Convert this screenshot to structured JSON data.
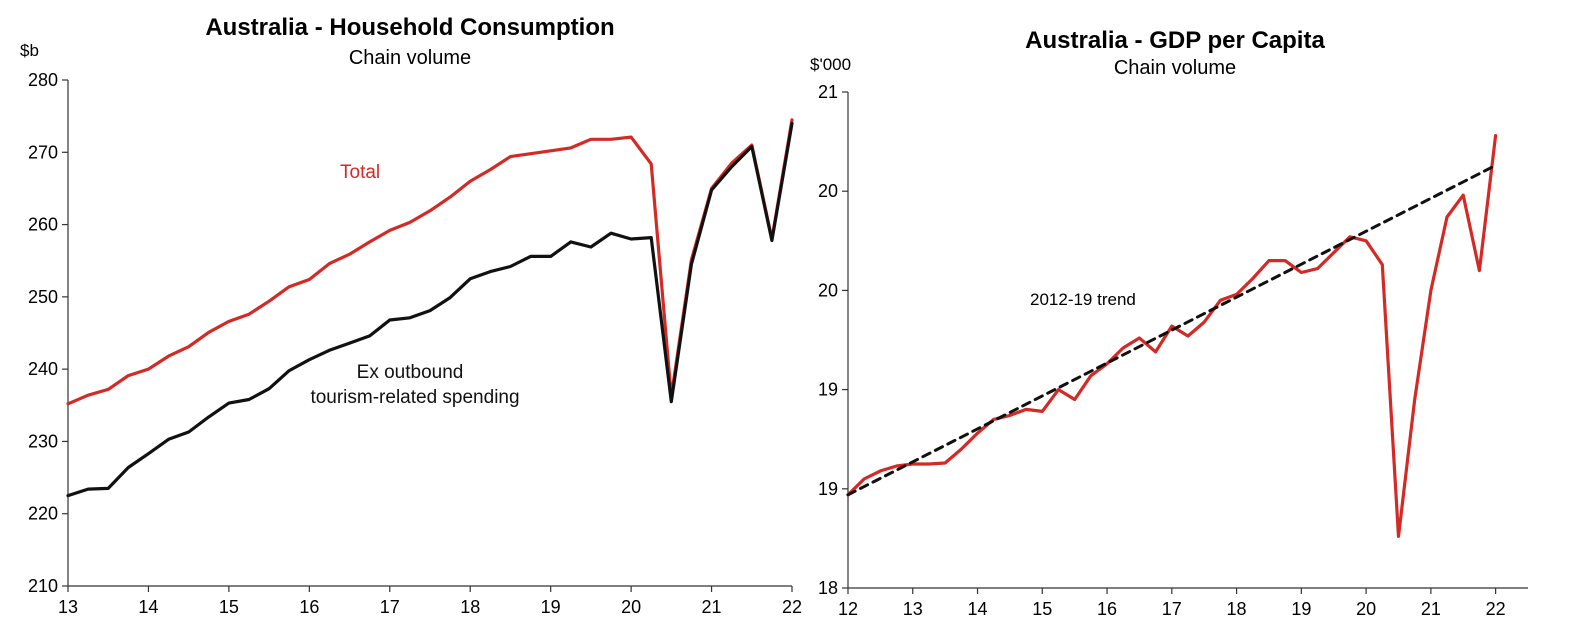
{
  "colors": {
    "total": "#d42a26",
    "ex_outbound": "#111111",
    "gdp": "#d42a26",
    "trend": "#111111"
  },
  "chart_data": [
    {
      "type": "line",
      "title": "Australia - Household Consumption",
      "subtitle": "Chain volume",
      "ylabel": "$b",
      "ylim": [
        210,
        280
      ],
      "yticks": [
        210,
        220,
        230,
        240,
        250,
        260,
        270,
        280
      ],
      "xlim": [
        13,
        22
      ],
      "xticks": [
        13,
        14,
        15,
        16,
        17,
        18,
        19,
        20,
        21,
        22
      ],
      "xtick_labels": [
        "13",
        "14",
        "15",
        "16",
        "17",
        "18",
        "19",
        "20",
        "21",
        "22"
      ],
      "x": [
        13.0,
        13.25,
        13.5,
        13.75,
        14.0,
        14.25,
        14.5,
        14.75,
        15.0,
        15.25,
        15.5,
        15.75,
        16.0,
        16.25,
        16.5,
        16.75,
        17.0,
        17.25,
        17.5,
        17.75,
        18.0,
        18.25,
        18.5,
        18.75,
        19.0,
        19.25,
        19.5,
        19.75,
        20.0,
        20.25,
        20.5,
        20.75,
        21.0,
        21.25,
        21.5,
        21.75,
        22.0
      ],
      "series": [
        {
          "name": "Total",
          "color": "#d42a26",
          "values": [
            235.2,
            236.4,
            237.2,
            239.1,
            240.0,
            241.8,
            243.1,
            245.1,
            246.6,
            247.6,
            249.4,
            251.4,
            252.4,
            254.6,
            255.9,
            257.6,
            259.2,
            260.3,
            261.9,
            263.8,
            266.0,
            267.6,
            269.4,
            269.8,
            270.2,
            270.6,
            271.8,
            271.8,
            272.1,
            268.4,
            236.2,
            255.1,
            265.0,
            268.5,
            271.0,
            258.0,
            274.5
          ]
        },
        {
          "name": "Ex outbound tourism-related spending",
          "color": "#111111",
          "values": [
            222.5,
            223.4,
            223.5,
            226.4,
            228.3,
            230.3,
            231.3,
            233.4,
            235.3,
            235.8,
            237.3,
            239.8,
            241.3,
            242.6,
            243.6,
            244.6,
            246.8,
            247.1,
            248.1,
            249.9,
            252.5,
            253.5,
            254.2,
            255.6,
            255.6,
            257.6,
            256.9,
            258.8,
            258.0,
            258.2,
            235.5,
            254.5,
            264.8,
            268.0,
            270.8,
            257.8,
            274.0
          ]
        }
      ],
      "annotations": [
        {
          "text": "Total",
          "color": "#d42a26"
        },
        {
          "text": "Ex outbound",
          "color": "#111111"
        },
        {
          "text": "tourism-related  spending",
          "color": "#111111"
        }
      ]
    },
    {
      "type": "line",
      "title": "Australia - GDP per Capita",
      "subtitle": "Chain volume",
      "ylabel": "$'000",
      "ylim": [
        0,
        5
      ],
      "yticks": [
        0,
        1,
        2,
        3,
        4,
        5
      ],
      "ytick_labels": [
        "18",
        "19",
        "19",
        "20",
        "20",
        "21"
      ],
      "xlim": [
        12,
        22.5
      ],
      "xticks": [
        12,
        13,
        14,
        15,
        16,
        17,
        18,
        19,
        20,
        21,
        22
      ],
      "xtick_labels": [
        "12",
        "13",
        "14",
        "15",
        "16",
        "17",
        "18",
        "19",
        "20",
        "21",
        "22"
      ],
      "x": [
        12.0,
        12.25,
        12.5,
        12.75,
        13.0,
        13.25,
        13.5,
        13.75,
        14.0,
        14.25,
        14.5,
        14.75,
        15.0,
        15.25,
        15.5,
        15.75,
        16.0,
        16.25,
        16.5,
        16.75,
        17.0,
        17.25,
        17.5,
        17.75,
        18.0,
        18.25,
        18.5,
        18.75,
        19.0,
        19.25,
        19.5,
        19.75,
        20.0,
        20.25,
        20.5,
        20.75,
        21.0,
        21.25,
        21.5,
        21.75,
        22.0
      ],
      "series": [
        {
          "name": "GDP per capita",
          "color": "#d42a26",
          "values": [
            0.94,
            1.1,
            1.18,
            1.23,
            1.25,
            1.25,
            1.26,
            1.4,
            1.56,
            1.7,
            1.74,
            1.8,
            1.78,
            2.0,
            1.9,
            2.14,
            2.26,
            2.42,
            2.52,
            2.38,
            2.64,
            2.54,
            2.68,
            2.9,
            2.96,
            3.12,
            3.3,
            3.3,
            3.18,
            3.22,
            3.38,
            3.54,
            3.5,
            3.26,
            0.52,
            1.9,
            3.0,
            3.74,
            3.96,
            3.2,
            4.56
          ]
        },
        {
          "name": "2012-19 trend",
          "color": "#111111",
          "dashed": true,
          "x_range": [
            12.0,
            22.0
          ],
          "values_range": [
            0.94,
            4.26
          ]
        }
      ],
      "annotations": [
        {
          "text": "2012-19 trend",
          "color": "#111111"
        }
      ]
    }
  ]
}
